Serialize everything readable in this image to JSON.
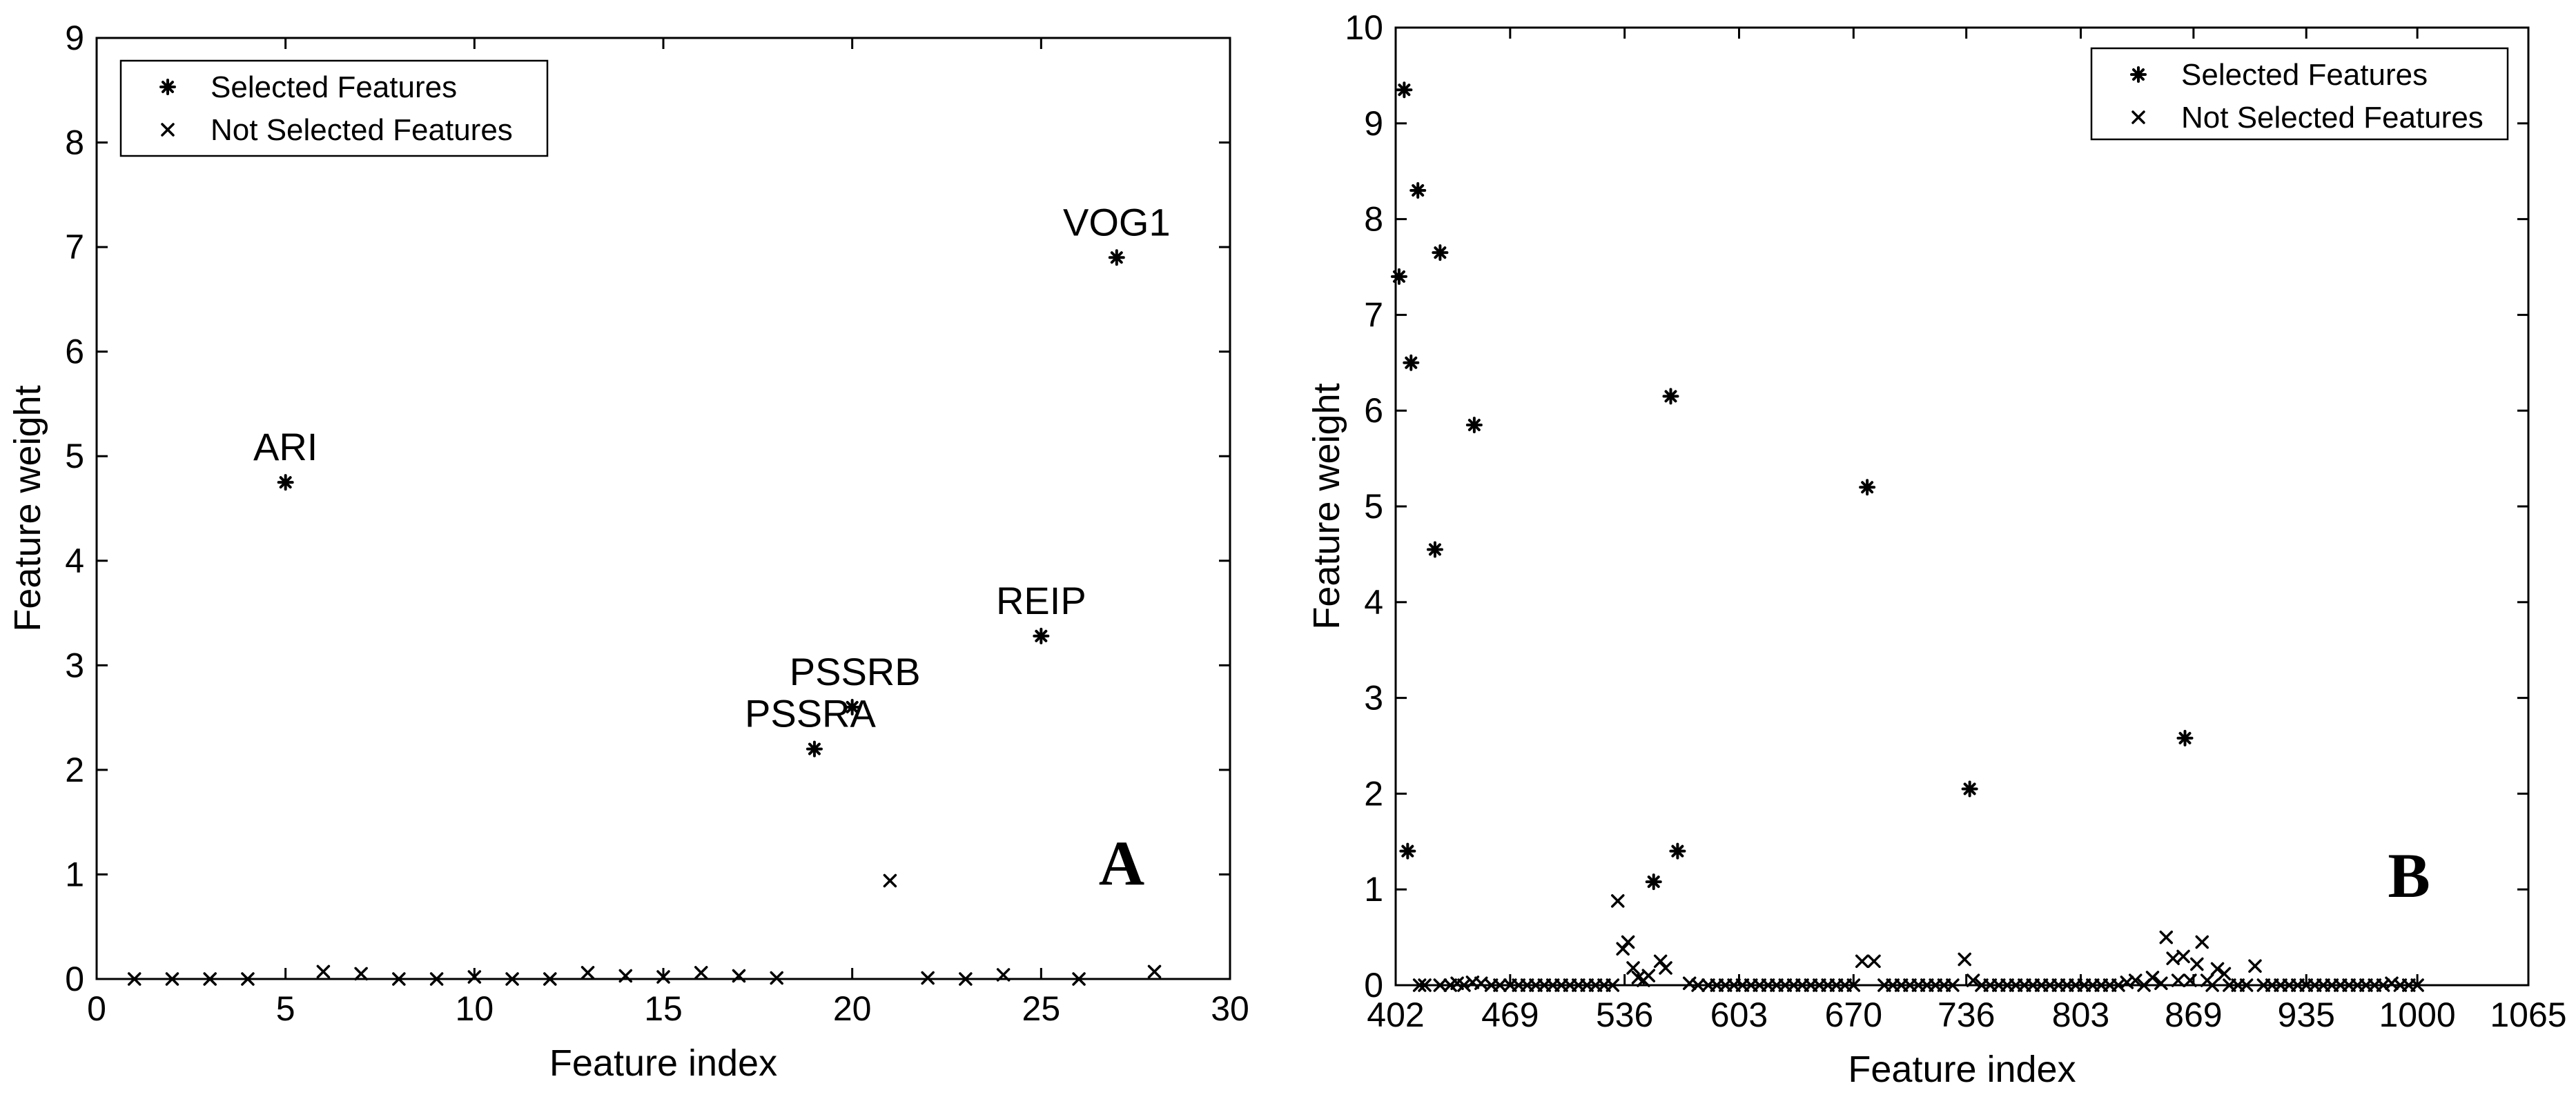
{
  "chart_data": [
    {
      "type": "scatter",
      "panel_label": "A",
      "xlabel": "Feature index",
      "ylabel": "Feature weight",
      "xlim": [
        0,
        30
      ],
      "ylim": [
        0,
        9
      ],
      "x_ticks": [
        0,
        5,
        10,
        15,
        20,
        25,
        30
      ],
      "x_tick_labels": [
        "0",
        "5",
        "10",
        "15",
        "20",
        "25",
        "30"
      ],
      "y_ticks": [
        0,
        1,
        2,
        3,
        4,
        5,
        6,
        7,
        8,
        9
      ],
      "y_tick_labels": [
        "0",
        "1",
        "2",
        "3",
        "4",
        "5",
        "6",
        "7",
        "8",
        "9"
      ],
      "legend": {
        "position": "top-left",
        "entries": [
          {
            "label": "Selected Features",
            "marker": "*"
          },
          {
            "label": "Not Selected Features",
            "marker": "x"
          }
        ]
      },
      "series": [
        {
          "name": "Selected Features",
          "marker": "*",
          "points": [
            {
              "x": 5,
              "y": 4.75
            },
            {
              "x": 19,
              "y": 2.2
            },
            {
              "x": 20,
              "y": 2.6
            },
            {
              "x": 25,
              "y": 3.28
            },
            {
              "x": 27,
              "y": 6.9
            }
          ]
        },
        {
          "name": "Not Selected Features",
          "marker": "x",
          "points": [
            {
              "x": 1,
              "y": 0.0
            },
            {
              "x": 2,
              "y": 0.0
            },
            {
              "x": 3,
              "y": 0.0
            },
            {
              "x": 4,
              "y": 0.0
            },
            {
              "x": 6,
              "y": 0.07
            },
            {
              "x": 7,
              "y": 0.05
            },
            {
              "x": 8,
              "y": 0.0
            },
            {
              "x": 9,
              "y": 0.0
            },
            {
              "x": 10,
              "y": 0.02
            },
            {
              "x": 11,
              "y": 0.0
            },
            {
              "x": 12,
              "y": 0.0
            },
            {
              "x": 13,
              "y": 0.06
            },
            {
              "x": 14,
              "y": 0.03
            },
            {
              "x": 15,
              "y": 0.02
            },
            {
              "x": 16,
              "y": 0.06
            },
            {
              "x": 17,
              "y": 0.03
            },
            {
              "x": 18,
              "y": 0.01
            },
            {
              "x": 21,
              "y": 0.94
            },
            {
              "x": 22,
              "y": 0.01
            },
            {
              "x": 23,
              "y": 0.0
            },
            {
              "x": 24,
              "y": 0.04
            },
            {
              "x": 26,
              "y": 0.0
            },
            {
              "x": 28,
              "y": 0.07
            }
          ]
        }
      ],
      "annotations": [
        {
          "text": "ARI",
          "x": 5,
          "y": 4.75
        },
        {
          "text": "PSSRA",
          "x": 19,
          "y": 2.2
        },
        {
          "text": "PSSRB",
          "x": 20,
          "y": 2.6
        },
        {
          "text": "REIP",
          "x": 25,
          "y": 3.28
        },
        {
          "text": "VOG1",
          "x": 27,
          "y": 6.9
        }
      ]
    },
    {
      "type": "scatter",
      "panel_label": "B",
      "xlabel": "Feature index",
      "ylabel": "Feature weight",
      "xlim": [
        402,
        1065
      ],
      "ylim": [
        0,
        10
      ],
      "x_ticks": [
        402,
        469,
        536,
        603,
        670,
        736,
        803,
        869,
        935,
        1000,
        1065
      ],
      "x_tick_labels": [
        "402",
        "469",
        "536",
        "603",
        "670",
        "736",
        "803",
        "869",
        "935",
        "1000",
        "1065"
      ],
      "y_ticks": [
        0,
        1,
        2,
        3,
        4,
        5,
        6,
        7,
        8,
        9,
        10
      ],
      "y_tick_labels": [
        "0",
        "1",
        "2",
        "3",
        "4",
        "5",
        "6",
        "7",
        "8",
        "9",
        "10"
      ],
      "legend": {
        "position": "top-right",
        "entries": [
          {
            "label": "Selected Features",
            "marker": "*"
          },
          {
            "label": "Not Selected Features",
            "marker": "x"
          }
        ]
      },
      "series": [
        {
          "name": "Selected Features",
          "marker": "*",
          "points": [
            {
              "x": 404,
              "y": 7.4
            },
            {
              "x": 407,
              "y": 9.35
            },
            {
              "x": 409,
              "y": 1.4
            },
            {
              "x": 411,
              "y": 6.5
            },
            {
              "x": 415,
              "y": 8.3
            },
            {
              "x": 425,
              "y": 4.55
            },
            {
              "x": 428,
              "y": 7.65
            },
            {
              "x": 448,
              "y": 5.85
            },
            {
              "x": 553,
              "y": 1.08
            },
            {
              "x": 563,
              "y": 6.15
            },
            {
              "x": 567,
              "y": 1.4
            },
            {
              "x": 678,
              "y": 5.2
            },
            {
              "x": 738,
              "y": 2.05
            },
            {
              "x": 864,
              "y": 2.58
            }
          ]
        },
        {
          "name": "Not Selected Features",
          "marker": "x",
          "points": [
            {
              "x": 416,
              "y": 0.0
            },
            {
              "x": 419,
              "y": 0.0
            },
            {
              "x": 428,
              "y": 0.0
            },
            {
              "x": 434,
              "y": 0.0
            },
            {
              "x": 438,
              "y": 0.02
            },
            {
              "x": 442,
              "y": 0.0
            },
            {
              "x": 447,
              "y": 0.03
            },
            {
              "x": 452,
              "y": 0.02
            },
            {
              "x": 458,
              "y": 0.0
            },
            {
              "x": 463,
              "y": 0.0
            },
            {
              "x": 469,
              "y": 0.0
            },
            {
              "x": 474,
              "y": 0.0
            },
            {
              "x": 479,
              "y": 0.0
            },
            {
              "x": 484,
              "y": 0.0
            },
            {
              "x": 489,
              "y": 0.0
            },
            {
              "x": 494,
              "y": 0.0
            },
            {
              "x": 499,
              "y": 0.0
            },
            {
              "x": 504,
              "y": 0.0
            },
            {
              "x": 509,
              "y": 0.0
            },
            {
              "x": 514,
              "y": 0.0
            },
            {
              "x": 519,
              "y": 0.0
            },
            {
              "x": 524,
              "y": 0.0
            },
            {
              "x": 529,
              "y": 0.0
            },
            {
              "x": 532,
              "y": 0.88
            },
            {
              "x": 535,
              "y": 0.38
            },
            {
              "x": 538,
              "y": 0.45
            },
            {
              "x": 541,
              "y": 0.18
            },
            {
              "x": 544,
              "y": 0.08
            },
            {
              "x": 547,
              "y": 0.05
            },
            {
              "x": 550,
              "y": 0.1
            },
            {
              "x": 557,
              "y": 0.25
            },
            {
              "x": 560,
              "y": 0.18
            },
            {
              "x": 574,
              "y": 0.02
            },
            {
              "x": 579,
              "y": 0.0
            },
            {
              "x": 585,
              "y": 0.0
            },
            {
              "x": 590,
              "y": 0.0
            },
            {
              "x": 595,
              "y": 0.0
            },
            {
              "x": 600,
              "y": 0.0
            },
            {
              "x": 605,
              "y": 0.0
            },
            {
              "x": 610,
              "y": 0.0
            },
            {
              "x": 615,
              "y": 0.0
            },
            {
              "x": 620,
              "y": 0.0
            },
            {
              "x": 625,
              "y": 0.0
            },
            {
              "x": 630,
              "y": 0.0
            },
            {
              "x": 635,
              "y": 0.0
            },
            {
              "x": 640,
              "y": 0.0
            },
            {
              "x": 645,
              "y": 0.0
            },
            {
              "x": 650,
              "y": 0.0
            },
            {
              "x": 655,
              "y": 0.0
            },
            {
              "x": 660,
              "y": 0.0
            },
            {
              "x": 665,
              "y": 0.0
            },
            {
              "x": 670,
              "y": 0.0
            },
            {
              "x": 675,
              "y": 0.25
            },
            {
              "x": 682,
              "y": 0.25
            },
            {
              "x": 688,
              "y": 0.0
            },
            {
              "x": 693,
              "y": 0.0
            },
            {
              "x": 698,
              "y": 0.0
            },
            {
              "x": 703,
              "y": 0.0
            },
            {
              "x": 708,
              "y": 0.0
            },
            {
              "x": 713,
              "y": 0.0
            },
            {
              "x": 718,
              "y": 0.0
            },
            {
              "x": 723,
              "y": 0.0
            },
            {
              "x": 728,
              "y": 0.0
            },
            {
              "x": 735,
              "y": 0.27
            },
            {
              "x": 740,
              "y": 0.05
            },
            {
              "x": 745,
              "y": 0.0
            },
            {
              "x": 750,
              "y": 0.0
            },
            {
              "x": 755,
              "y": 0.0
            },
            {
              "x": 760,
              "y": 0.0
            },
            {
              "x": 765,
              "y": 0.0
            },
            {
              "x": 770,
              "y": 0.0
            },
            {
              "x": 775,
              "y": 0.0
            },
            {
              "x": 780,
              "y": 0.0
            },
            {
              "x": 785,
              "y": 0.0
            },
            {
              "x": 790,
              "y": 0.0
            },
            {
              "x": 795,
              "y": 0.0
            },
            {
              "x": 800,
              "y": 0.0
            },
            {
              "x": 805,
              "y": 0.0
            },
            {
              "x": 810,
              "y": 0.0
            },
            {
              "x": 815,
              "y": 0.0
            },
            {
              "x": 820,
              "y": 0.0
            },
            {
              "x": 825,
              "y": 0.0
            },
            {
              "x": 830,
              "y": 0.03
            },
            {
              "x": 835,
              "y": 0.05
            },
            {
              "x": 840,
              "y": 0.0
            },
            {
              "x": 845,
              "y": 0.08
            },
            {
              "x": 850,
              "y": 0.02
            },
            {
              "x": 853,
              "y": 0.5
            },
            {
              "x": 857,
              "y": 0.28
            },
            {
              "x": 860,
              "y": 0.05
            },
            {
              "x": 863,
              "y": 0.3
            },
            {
              "x": 867,
              "y": 0.05
            },
            {
              "x": 871,
              "y": 0.22
            },
            {
              "x": 874,
              "y": 0.45
            },
            {
              "x": 877,
              "y": 0.05
            },
            {
              "x": 880,
              "y": 0.0
            },
            {
              "x": 883,
              "y": 0.17
            },
            {
              "x": 887,
              "y": 0.12
            },
            {
              "x": 890,
              "y": 0.0
            },
            {
              "x": 895,
              "y": 0.0
            },
            {
              "x": 900,
              "y": 0.0
            },
            {
              "x": 905,
              "y": 0.2
            },
            {
              "x": 910,
              "y": 0.0
            },
            {
              "x": 915,
              "y": 0.0
            },
            {
              "x": 920,
              "y": 0.0
            },
            {
              "x": 925,
              "y": 0.0
            },
            {
              "x": 930,
              "y": 0.0
            },
            {
              "x": 935,
              "y": 0.0
            },
            {
              "x": 940,
              "y": 0.0
            },
            {
              "x": 945,
              "y": 0.0
            },
            {
              "x": 950,
              "y": 0.0
            },
            {
              "x": 955,
              "y": 0.0
            },
            {
              "x": 960,
              "y": 0.0
            },
            {
              "x": 965,
              "y": 0.0
            },
            {
              "x": 970,
              "y": 0.0
            },
            {
              "x": 975,
              "y": 0.0
            },
            {
              "x": 980,
              "y": 0.0
            },
            {
              "x": 985,
              "y": 0.02
            },
            {
              "x": 990,
              "y": 0.0
            },
            {
              "x": 995,
              "y": 0.0
            },
            {
              "x": 1000,
              "y": 0.0
            }
          ]
        }
      ],
      "annotations": []
    }
  ]
}
